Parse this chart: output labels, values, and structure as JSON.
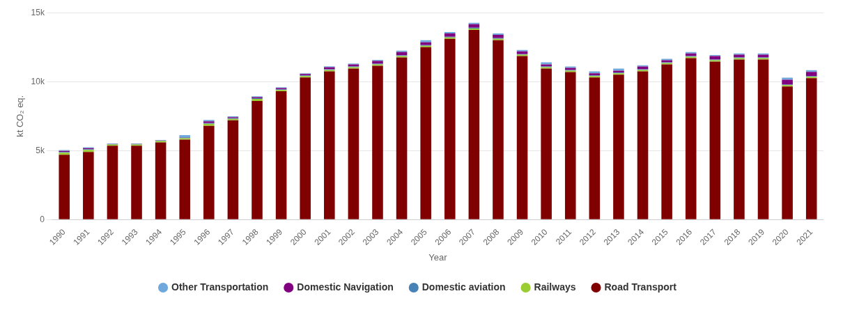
{
  "chart_data": {
    "type": "bar",
    "stacked": true,
    "xlabel": "Year",
    "ylabel": "kt CO₂ eq.",
    "categories": [
      "1990",
      "1991",
      "1992",
      "1993",
      "1994",
      "1995",
      "1996",
      "1997",
      "1998",
      "1999",
      "2000",
      "2001",
      "2002",
      "2003",
      "2004",
      "2005",
      "2006",
      "2007",
      "2008",
      "2009",
      "2010",
      "2011",
      "2012",
      "2013",
      "2014",
      "2015",
      "2016",
      "2017",
      "2018",
      "2019",
      "2020",
      "2021"
    ],
    "series": [
      {
        "name": "Road Transport",
        "color": "#800000",
        "values": [
          4700,
          4900,
          5350,
          5350,
          5600,
          5800,
          6800,
          7200,
          8600,
          9300,
          10300,
          10750,
          10950,
          11150,
          11750,
          12500,
          13100,
          13750,
          13000,
          11850,
          10950,
          10700,
          10300,
          10500,
          10750,
          11250,
          11700,
          11450,
          11600,
          11600,
          9650,
          10250
        ]
      },
      {
        "name": "Railways",
        "color": "#9acd32",
        "values": [
          150,
          150,
          100,
          100,
          100,
          100,
          150,
          100,
          150,
          100,
          100,
          100,
          100,
          100,
          100,
          100,
          100,
          100,
          100,
          100,
          100,
          100,
          100,
          100,
          100,
          100,
          100,
          100,
          100,
          100,
          100,
          100
        ]
      },
      {
        "name": "Domestic aviation",
        "color": "#4682b4",
        "values": [
          50,
          50,
          30,
          30,
          30,
          50,
          50,
          50,
          50,
          50,
          50,
          50,
          50,
          50,
          50,
          50,
          50,
          60,
          50,
          50,
          50,
          50,
          50,
          50,
          50,
          50,
          50,
          50,
          50,
          50,
          40,
          60
        ]
      },
      {
        "name": "Domestic Navigation",
        "color": "#800080",
        "values": [
          80,
          80,
          20,
          20,
          20,
          30,
          120,
          80,
          80,
          80,
          100,
          150,
          150,
          200,
          250,
          200,
          250,
          250,
          250,
          200,
          150,
          150,
          150,
          150,
          200,
          150,
          200,
          250,
          200,
          200,
          350,
          300
        ]
      },
      {
        "name": "Other Transportation",
        "color": "#6fa8dc",
        "values": [
          60,
          60,
          20,
          20,
          20,
          150,
          100,
          60,
          60,
          60,
          60,
          60,
          60,
          80,
          100,
          150,
          100,
          100,
          100,
          100,
          150,
          100,
          150,
          150,
          80,
          100,
          100,
          80,
          100,
          100,
          150,
          120
        ]
      }
    ],
    "ylim": [
      0,
      15000
    ],
    "yticks": [
      0,
      {
        "value": 5000,
        "label": "5k"
      },
      {
        "value": 10000,
        "label": "10k"
      },
      {
        "value": 15000,
        "label": "15k"
      }
    ],
    "grid": "y",
    "legend": "bottom"
  }
}
